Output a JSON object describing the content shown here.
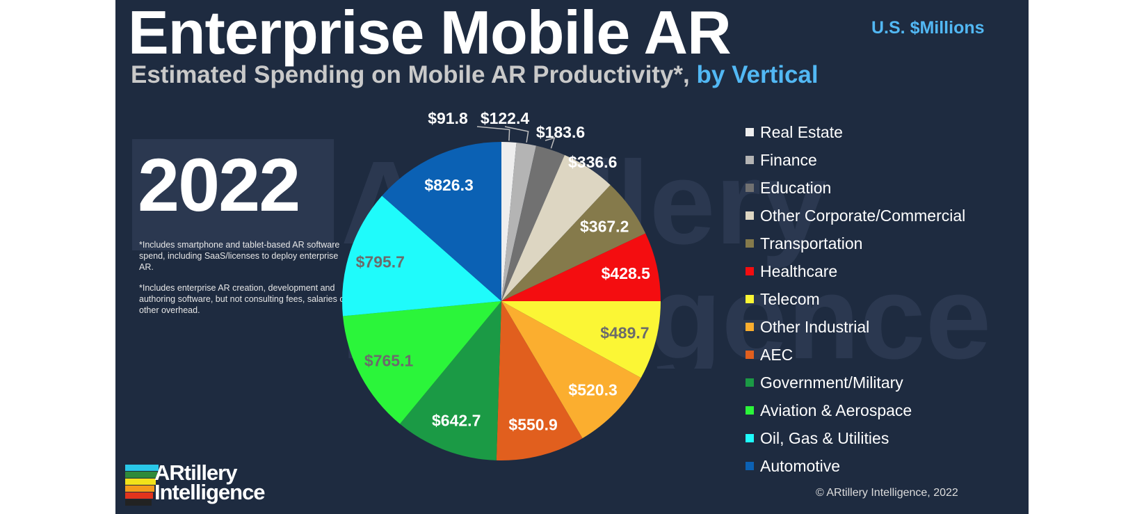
{
  "header": {
    "title": "Enterprise Mobile AR",
    "subtitle_main": "Estimated Spending on Mobile AR Productivity*,",
    "subtitle_accent": "by Vertical",
    "units": "U.S. $Millions"
  },
  "year": "2022",
  "notes": [
    "*Includes smartphone and tablet-based AR software spend, including SaaS/licenses to deploy enterprise AR.",
    "*Includes enterprise AR creation, development and authoring software, but not consulting fees, salaries or other overhead."
  ],
  "logo": {
    "line1": "ARtillery",
    "line2": "Intelligence",
    "watermark_line1": "ARtillery",
    "watermark_line2": "Intelligence"
  },
  "copyright": "© ARtillery Intelligence, 2022",
  "colors": {
    "background": "#1e2b40",
    "accent": "#52b8f4",
    "logo_bars": [
      "#29c7e8",
      "#2f8a3a",
      "#f2e21a",
      "#f59a1b",
      "#e2341d",
      "#222222"
    ]
  },
  "chart_data": {
    "type": "pie",
    "title": "Enterprise Mobile AR",
    "start": "12 o'clock",
    "direction": "clockwise",
    "legend_position": "right",
    "slices": [
      {
        "name": "Real Estate",
        "value": 91.8,
        "label": "$91.8",
        "color": "#eeeeee",
        "label_color": "#ffffff"
      },
      {
        "name": "Finance",
        "value": 122.4,
        "label": "$122.4",
        "color": "#b4b4b4",
        "label_color": "#ffffff"
      },
      {
        "name": "Education",
        "value": 183.6,
        "label": "$183.6",
        "color": "#717171",
        "label_color": "#ffffff"
      },
      {
        "name": "Other Corporate/Commercial",
        "value": 336.6,
        "label": "$336.6",
        "color": "#ddd6c2",
        "label_color": "#ffffff"
      },
      {
        "name": "Transportation",
        "value": 367.2,
        "label": "$367.2",
        "color": "#857a4b",
        "label_color": "#ffffff"
      },
      {
        "name": "Healthcare",
        "value": 428.5,
        "label": "$428.5",
        "color": "#f40d10",
        "label_color": "#ffffff"
      },
      {
        "name": "Telecom",
        "value": 489.7,
        "label": "$489.7",
        "color": "#fbf635",
        "label_color": "#6b6b6b"
      },
      {
        "name": "Other Industrial",
        "value": 520.3,
        "label": "$520.3",
        "color": "#fbae2f",
        "label_color": "#ffffff"
      },
      {
        "name": "AEC",
        "value": 550.9,
        "label": "$550.9",
        "color": "#e15f1e",
        "label_color": "#ffffff"
      },
      {
        "name": "Government/Military",
        "value": 642.7,
        "label": "$642.7",
        "color": "#1b9a45",
        "label_color": "#ffffff"
      },
      {
        "name": "Aviation & Aerospace",
        "value": 765.1,
        "label": "$765.1",
        "color": "#2bf53a",
        "label_color": "#6b6b6b"
      },
      {
        "name": "Oil, Gas & Utilities",
        "value": 795.7,
        "label": "$795.7",
        "color": "#1ffbfb",
        "label_color": "#6b6b6b"
      },
      {
        "name": "Automotive",
        "value": 826.3,
        "label": "$826.3",
        "color": "#0b61b4",
        "label_color": "#ffffff"
      }
    ]
  }
}
